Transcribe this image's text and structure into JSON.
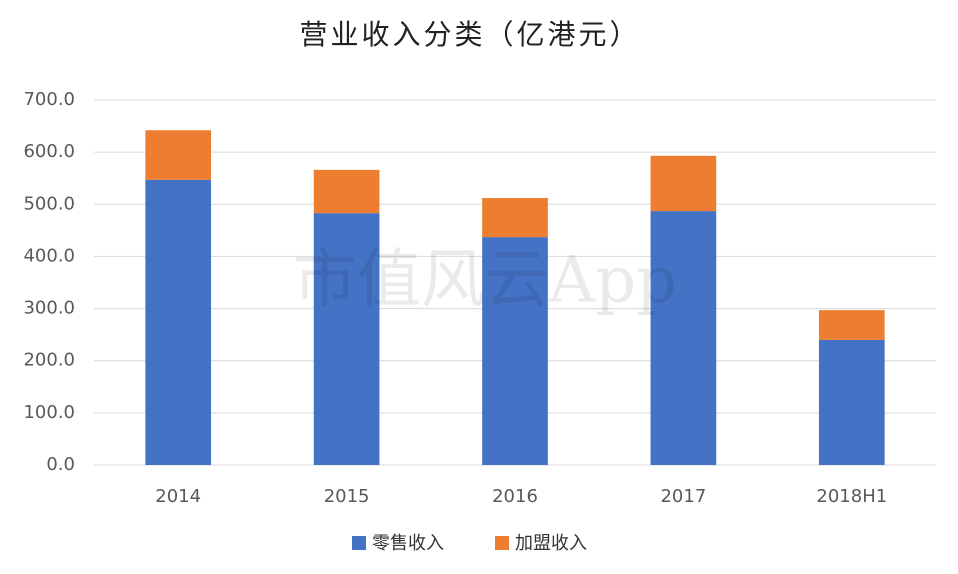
{
  "chart_data": {
    "type": "stacked_bar",
    "title": "营业收入分类（亿港元）",
    "watermark": "市值风云App",
    "categories": [
      "2014",
      "2015",
      "2016",
      "2017",
      "2018H1"
    ],
    "series": [
      {
        "name": "零售收入",
        "color": "#4472c4",
        "values": [
          547,
          483,
          437,
          487,
          240
        ]
      },
      {
        "name": "加盟收入",
        "color": "#ed7d31",
        "values": [
          95,
          83,
          75,
          106,
          57
        ]
      }
    ],
    "ylim": [
      0,
      700
    ],
    "yticks": [
      {
        "value": 0,
        "label": "0.0"
      },
      {
        "value": 100,
        "label": "100.0"
      },
      {
        "value": 200,
        "label": "200.0"
      },
      {
        "value": 300,
        "label": "300.0"
      },
      {
        "value": 400,
        "label": "400.0"
      },
      {
        "value": 500,
        "label": "500.0"
      },
      {
        "value": 600,
        "label": "600.0"
      },
      {
        "value": 700,
        "label": "700.0"
      }
    ],
    "grid": true
  }
}
